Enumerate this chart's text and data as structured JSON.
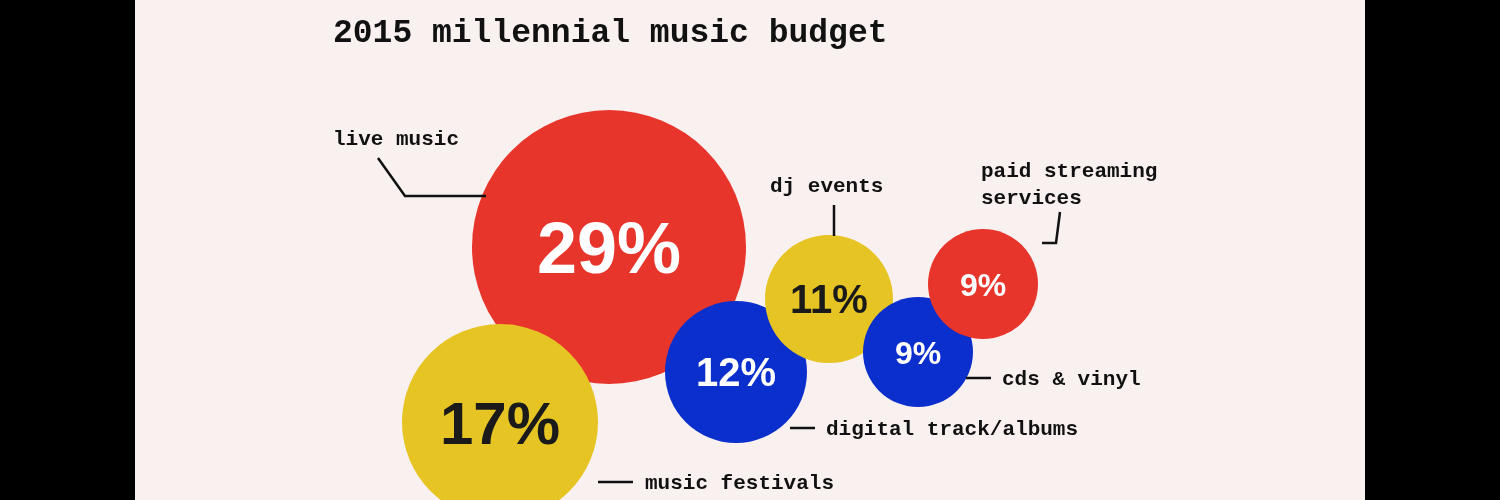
{
  "chart_data": {
    "type": "other",
    "title": "2015 millennial music budget",
    "categories": [
      "live music",
      "music festivals",
      "digital track/albums",
      "dj events",
      "cds & vinyl",
      "paid streaming services"
    ],
    "values": [
      29,
      17,
      12,
      11,
      9,
      9
    ],
    "value_labels": [
      "29%",
      "17%",
      "12%",
      "11%",
      "9%",
      "9%"
    ],
    "colors": [
      "#e8352c",
      "#e6c424",
      "#0a2fcc",
      "#e6c424",
      "#0a2fcc",
      "#e8352c"
    ]
  }
}
